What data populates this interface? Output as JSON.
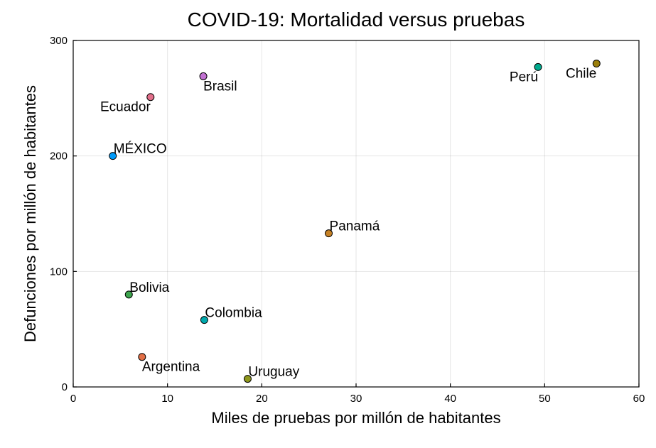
{
  "chart_data": {
    "type": "scatter",
    "title": "COVID-19: Mortalidad versus pruebas",
    "xlabel": "Miles de pruebas por millón de habitantes",
    "ylabel": "Defunciones por millón de habitantes",
    "xlim": [
      0,
      60
    ],
    "ylim": [
      0,
      300
    ],
    "xticks": [
      0,
      10,
      20,
      30,
      40,
      50,
      60
    ],
    "yticks": [
      0,
      100,
      200,
      300
    ],
    "xtick_labels": [
      "0",
      "10",
      "20",
      "30",
      "40",
      "50",
      "60"
    ],
    "ytick_labels": [
      "0",
      "100",
      "200",
      "300"
    ],
    "grid": true,
    "points": [
      {
        "name": "Brasil",
        "x": 13.8,
        "y": 269,
        "color": "#c271d2",
        "label_color": "#000000",
        "label_pos": "below-right"
      },
      {
        "name": "Ecuador",
        "x": 8.2,
        "y": 251,
        "color": "#e26f8b",
        "label_color": "#000000",
        "label_pos": "below-left"
      },
      {
        "name": "MÉXICO",
        "x": 4.2,
        "y": 200,
        "color": "#009af9",
        "label_color": "#e8000b",
        "label_pos": "above-right"
      },
      {
        "name": "Perú",
        "x": 49.3,
        "y": 277,
        "color": "#00a98d",
        "label_color": "#000000",
        "label_pos": "below-left"
      },
      {
        "name": "Chile",
        "x": 55.5,
        "y": 280,
        "color": "#9b7f0b",
        "label_color": "#000000",
        "label_pos": "below-left"
      },
      {
        "name": "Panamá",
        "x": 27.1,
        "y": 133,
        "color": "#c68125",
        "label_color": "#000000",
        "label_pos": "above-right"
      },
      {
        "name": "Bolivia",
        "x": 5.9,
        "y": 80,
        "color": "#3da44d",
        "label_color": "#000000",
        "label_pos": "above-right"
      },
      {
        "name": "Colombia",
        "x": 13.9,
        "y": 58,
        "color": "#00a9ad",
        "label_color": "#000000",
        "label_pos": "above-right"
      },
      {
        "name": "Argentina",
        "x": 7.3,
        "y": 26,
        "color": "#e26f46",
        "label_color": "#000000",
        "label_pos": "below-right"
      },
      {
        "name": "Uruguay",
        "x": 18.5,
        "y": 7,
        "color": "#8e971d",
        "label_color": "#000000",
        "label_pos": "above-right"
      }
    ]
  }
}
